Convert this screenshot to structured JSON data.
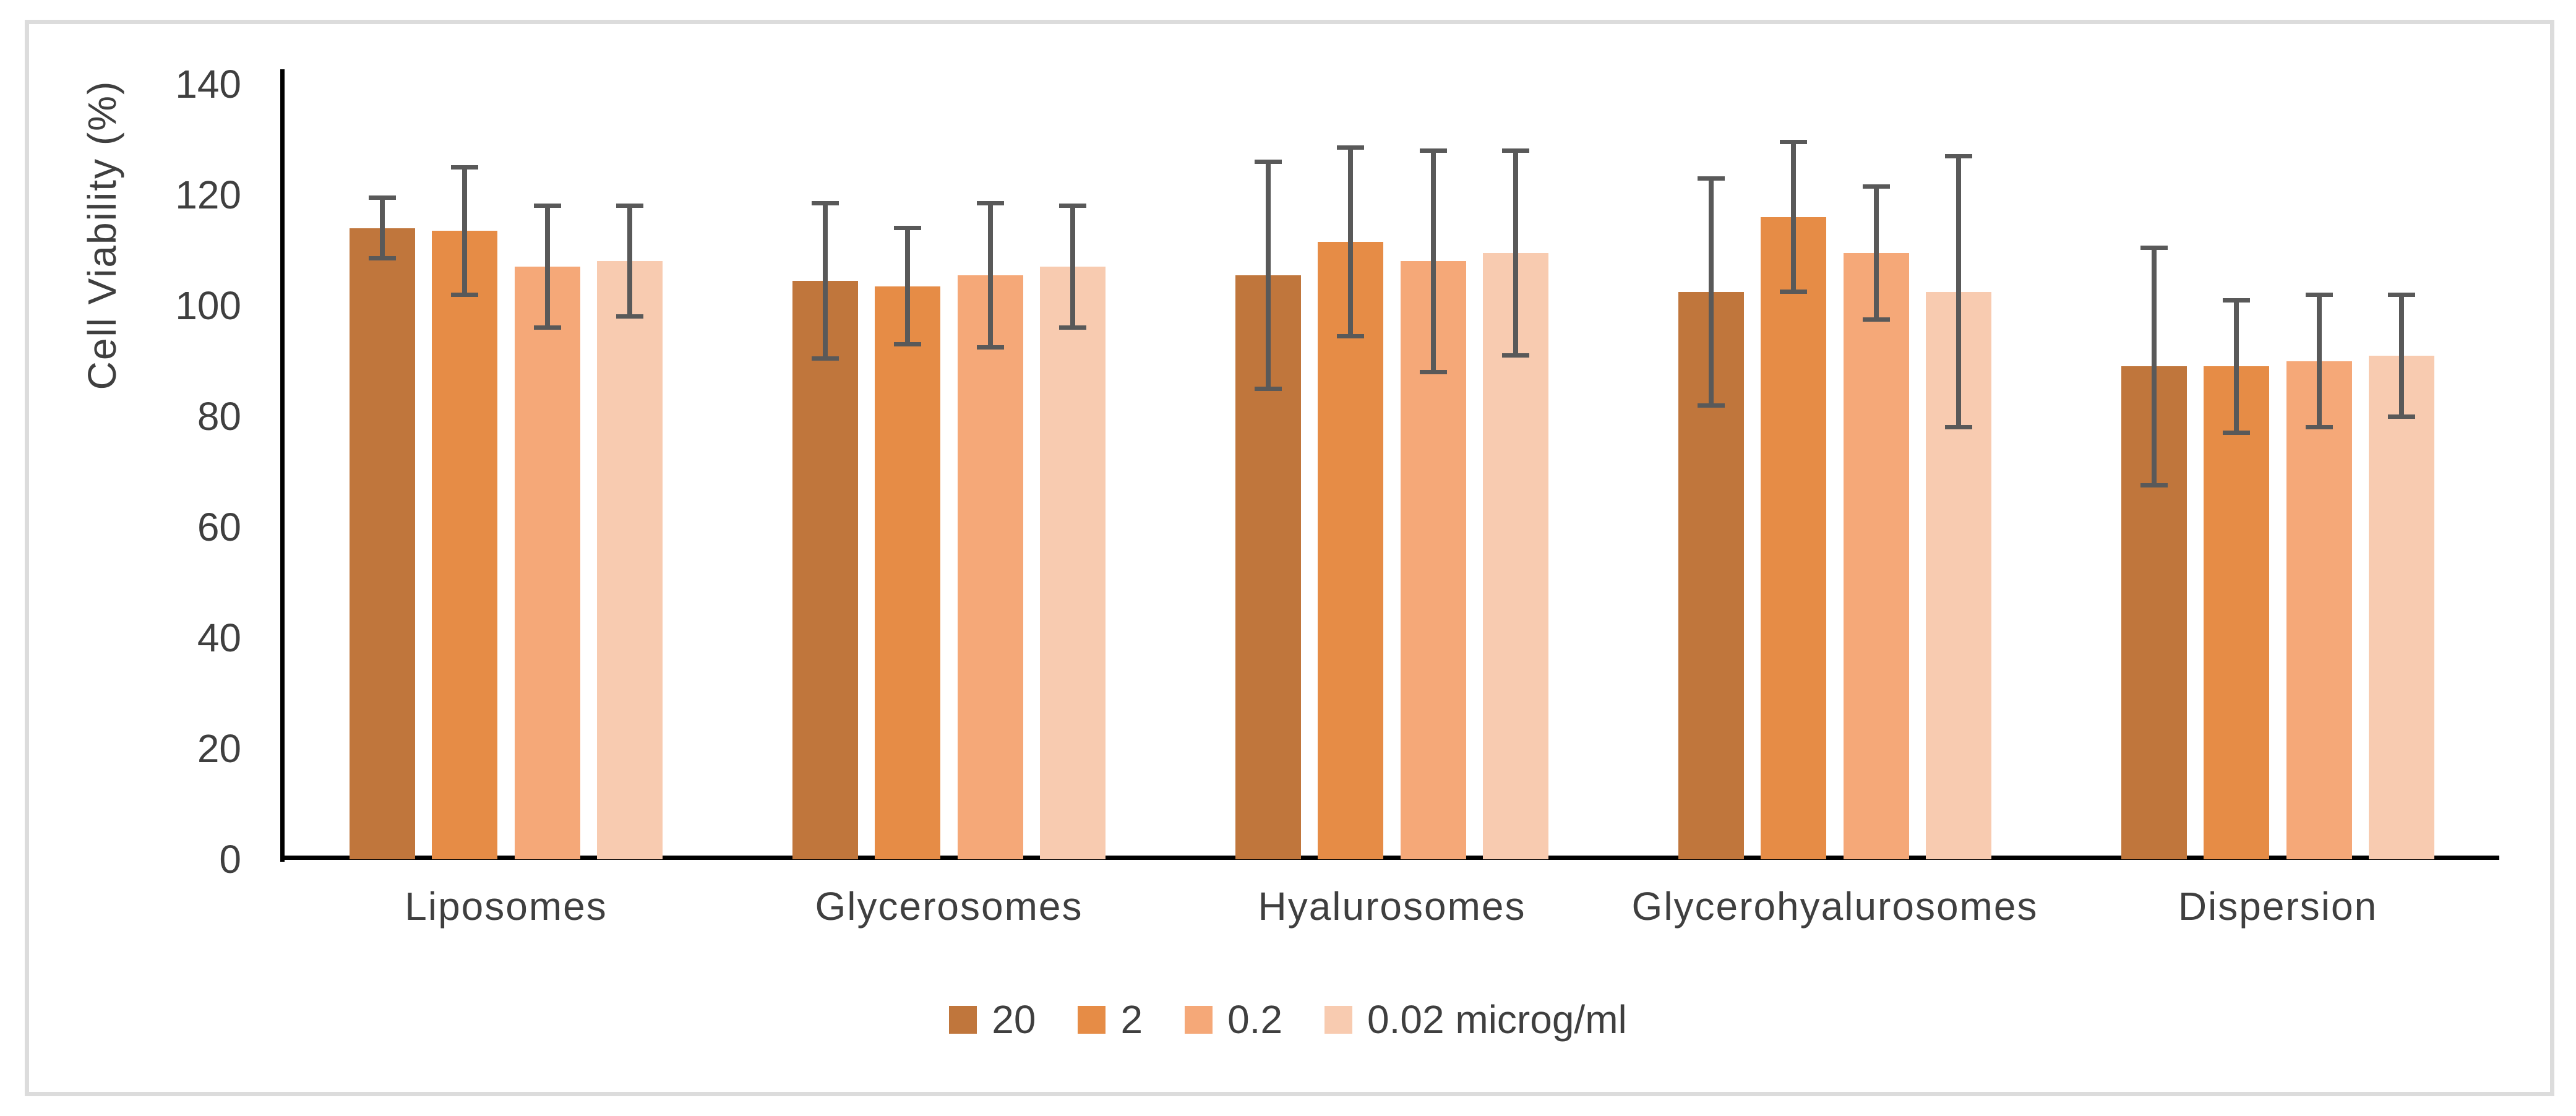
{
  "chart_data": {
    "type": "bar",
    "title": "",
    "ylabel": "Cell Viability (%)",
    "xlabel": "",
    "ylim": [
      0,
      140
    ],
    "yticks": [
      0,
      20,
      40,
      60,
      80,
      100,
      120,
      140
    ],
    "grid": false,
    "legend_position": "bottom-center",
    "error_bar_color": "#595959",
    "axis_line_color": "#000000",
    "text_color": "#3f3f3f",
    "frame_border_color": "#dcdcdc",
    "categories": [
      "Liposomes",
      "Glycerosomes",
      "Hyalurosomes",
      "Glycerohyalurosomes",
      "Dispersion"
    ],
    "series": [
      {
        "name": "20",
        "color": "#c0763c",
        "values": [
          114,
          104.5,
          105.5,
          102.5,
          89
        ],
        "errors": [
          5.5,
          14,
          20.5,
          20.5,
          21.5
        ]
      },
      {
        "name": "2",
        "color": "#e68c46",
        "values": [
          113.5,
          103.5,
          111.5,
          116,
          89
        ],
        "errors": [
          11.5,
          10.5,
          17,
          13.5,
          12
        ]
      },
      {
        "name": "0.2",
        "color": "#f5a878",
        "values": [
          107,
          105.5,
          108,
          109.5,
          90
        ],
        "errors": [
          11,
          13,
          20,
          12,
          12
        ]
      },
      {
        "name": "0.02 microg/ml",
        "color": "#f8cbb0",
        "values": [
          108,
          107,
          109.5,
          102.5,
          91
        ],
        "errors": [
          10,
          11,
          18.5,
          24.5,
          11
        ]
      }
    ]
  }
}
